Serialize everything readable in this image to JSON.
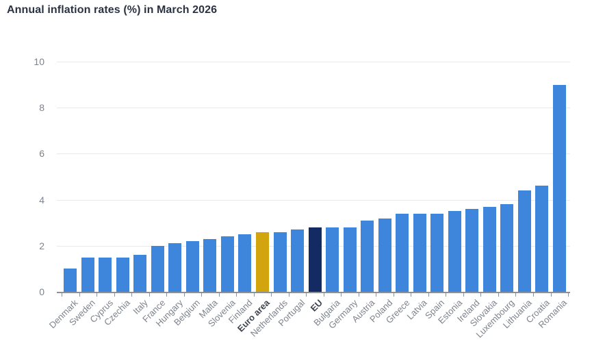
{
  "chart_data": {
    "type": "bar",
    "title": "Annual inflation rates (%) in March 2026",
    "categories": [
      "Denmark",
      "Sweden",
      "Cyprus",
      "Czechia",
      "Italy",
      "France",
      "Hungary",
      "Belgium",
      "Malta",
      "Slovenia",
      "Finland",
      "Euro area",
      "Netherlands",
      "Portugal",
      "EU",
      "Bulgaria",
      "Germany",
      "Austria",
      "Poland",
      "Greece",
      "Latvia",
      "Spain",
      "Estonia",
      "Ireland",
      "Slovakia",
      "Luxembourg",
      "Lithuania",
      "Croatia",
      "Romania"
    ],
    "values": [
      1.0,
      1.5,
      1.5,
      1.5,
      1.6,
      2.0,
      2.1,
      2.2,
      2.3,
      2.4,
      2.5,
      2.6,
      2.6,
      2.7,
      2.8,
      2.8,
      2.8,
      3.1,
      3.2,
      3.4,
      3.4,
      3.4,
      3.5,
      3.6,
      3.7,
      3.8,
      4.4,
      4.6,
      9.0
    ],
    "highlighted": [
      {
        "category": "Euro area",
        "style": "gold",
        "bold_label": true
      },
      {
        "category": "EU",
        "style": "navy",
        "bold_label": true
      }
    ],
    "xlabel": "",
    "ylabel": "",
    "ylim": [
      0,
      10
    ],
    "yticks": [
      0,
      2,
      4,
      6,
      8,
      10
    ],
    "grid": true,
    "legend": false,
    "x_label_rotation_deg": -45
  },
  "colors": {
    "background": "#ffffff",
    "bar_default": "#3E86DC",
    "bar_gold": "#D2A40E",
    "bar_navy": "#142A63",
    "title_text": "#2B3342",
    "axis_label_text": "#7D838C",
    "emphasized_label_text": "#3D4450",
    "gridline": "#E7E9EC",
    "axis_line": "#8B919A"
  }
}
